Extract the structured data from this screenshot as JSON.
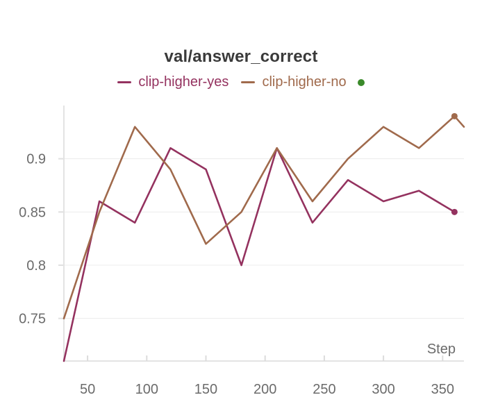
{
  "chart_data": {
    "type": "line",
    "title": "val/answer_correct",
    "xlabel": "Step",
    "ylabel": "",
    "xlim": [
      30,
      368
    ],
    "ylim": [
      0.71,
      0.95
    ],
    "x_ticks": [
      50,
      100,
      150,
      200,
      250,
      300,
      350
    ],
    "y_ticks": [
      0.75,
      0.8,
      0.85,
      0.9
    ],
    "y_tick_labels": [
      "0.75",
      "0.8",
      "0.85",
      "0.9"
    ],
    "grid": true,
    "legend_position": "top-center",
    "status_dot_color": "#3a8a2a",
    "series": [
      {
        "name": "clip-higher-yes",
        "color": "#94325f",
        "x": [
          30,
          60,
          90,
          120,
          150,
          180,
          210,
          240,
          270,
          300,
          330,
          360
        ],
        "y": [
          0.71,
          0.86,
          0.84,
          0.91,
          0.89,
          0.8,
          0.91,
          0.84,
          0.88,
          0.86,
          0.87,
          0.85
        ],
        "end_marker": true
      },
      {
        "name": "clip-higher-no",
        "color": "#a06a4c",
        "x": [
          30,
          60,
          90,
          120,
          150,
          180,
          210,
          240,
          270,
          300,
          330,
          360,
          368
        ],
        "y": [
          0.75,
          0.85,
          0.93,
          0.89,
          0.82,
          0.85,
          0.91,
          0.86,
          0.9,
          0.93,
          0.91,
          0.94,
          0.93
        ],
        "end_marker": true
      }
    ]
  }
}
